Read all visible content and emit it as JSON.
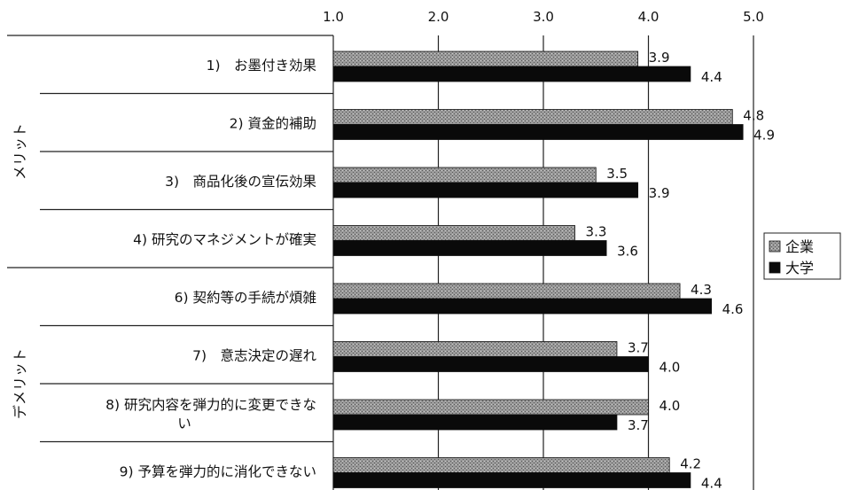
{
  "chart_data": {
    "type": "bar",
    "orientation": "horizontal",
    "xlim": [
      1.0,
      5.0
    ],
    "ticks": [
      "1.0",
      "2.0",
      "3.0",
      "4.0",
      "5.0"
    ],
    "tick_values": [
      1,
      2,
      3,
      4,
      5
    ],
    "grid": true,
    "legend_position": "right",
    "groups": [
      {
        "label": "メリット",
        "count": 4
      },
      {
        "label": "デメリット",
        "count": 4
      }
    ],
    "categories": [
      [
        "1)　お墨付き効果"
      ],
      [
        "2) 資金的補助"
      ],
      [
        "3)　商品化後の宣伝効果"
      ],
      [
        "4) 研究のマネジメントが確実"
      ],
      [
        "6) 契約等の手続が煩雑"
      ],
      [
        "7)　意志決定の遅れ"
      ],
      [
        "8) 研究内容を弾力的に変更できな",
        "い"
      ],
      [
        "9) 予算を弾力的に消化できない"
      ]
    ],
    "series": [
      {
        "name": "企業",
        "color": "#8a8a8a",
        "values": [
          3.9,
          4.8,
          3.5,
          3.3,
          4.3,
          3.7,
          4.0,
          4.2
        ],
        "labels": [
          "3.9",
          "4.8",
          "3.5",
          "3.3",
          "4.3",
          "3.7",
          "4.0",
          "4.2"
        ]
      },
      {
        "name": "大学",
        "color": "#0a0a0a",
        "values": [
          4.4,
          4.9,
          3.9,
          3.6,
          4.6,
          4.0,
          3.7,
          4.4
        ],
        "labels": [
          "4.4",
          "4.9",
          "3.9",
          "3.6",
          "4.6",
          "4.0",
          "3.7",
          "4.4"
        ]
      }
    ]
  }
}
